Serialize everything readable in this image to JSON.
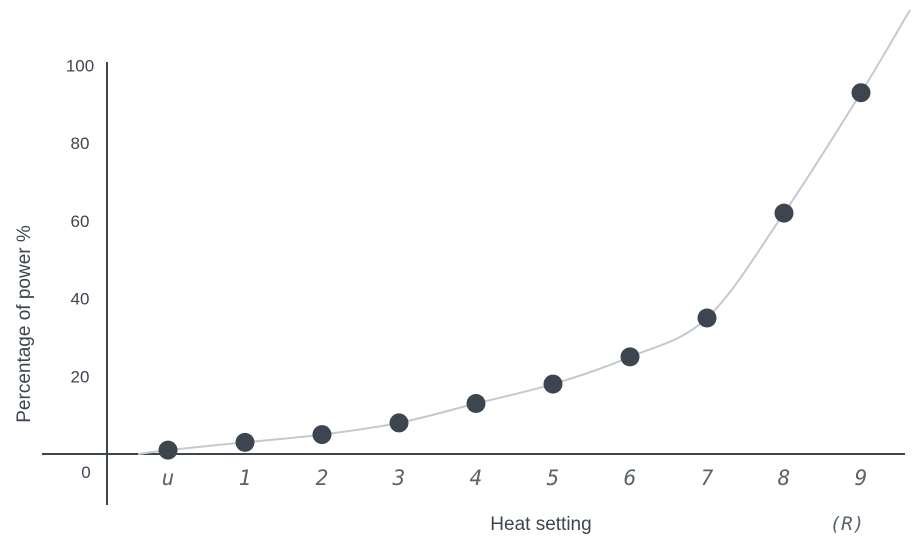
{
  "chart_data": {
    "type": "line",
    "title": "",
    "xlabel": "Heat setting",
    "ylabel": "Percentage of power %",
    "categories": [
      "u",
      "1",
      "2",
      "3",
      "4",
      "5",
      "6",
      "7",
      "8",
      "9"
    ],
    "values": [
      1,
      3,
      5,
      8,
      13,
      18,
      25,
      35,
      62,
      93
    ],
    "y_origin_label": "0",
    "y_ticks": [
      20,
      40,
      60,
      80,
      100
    ],
    "ylim": [
      0,
      100
    ],
    "extra_label": "(R)",
    "grid": false,
    "legend": "none",
    "colors": {
      "axis": "#3d4650",
      "curve": "#c3c9ce",
      "points": "#3d4650",
      "x_tick_text": "#5a636b"
    }
  }
}
